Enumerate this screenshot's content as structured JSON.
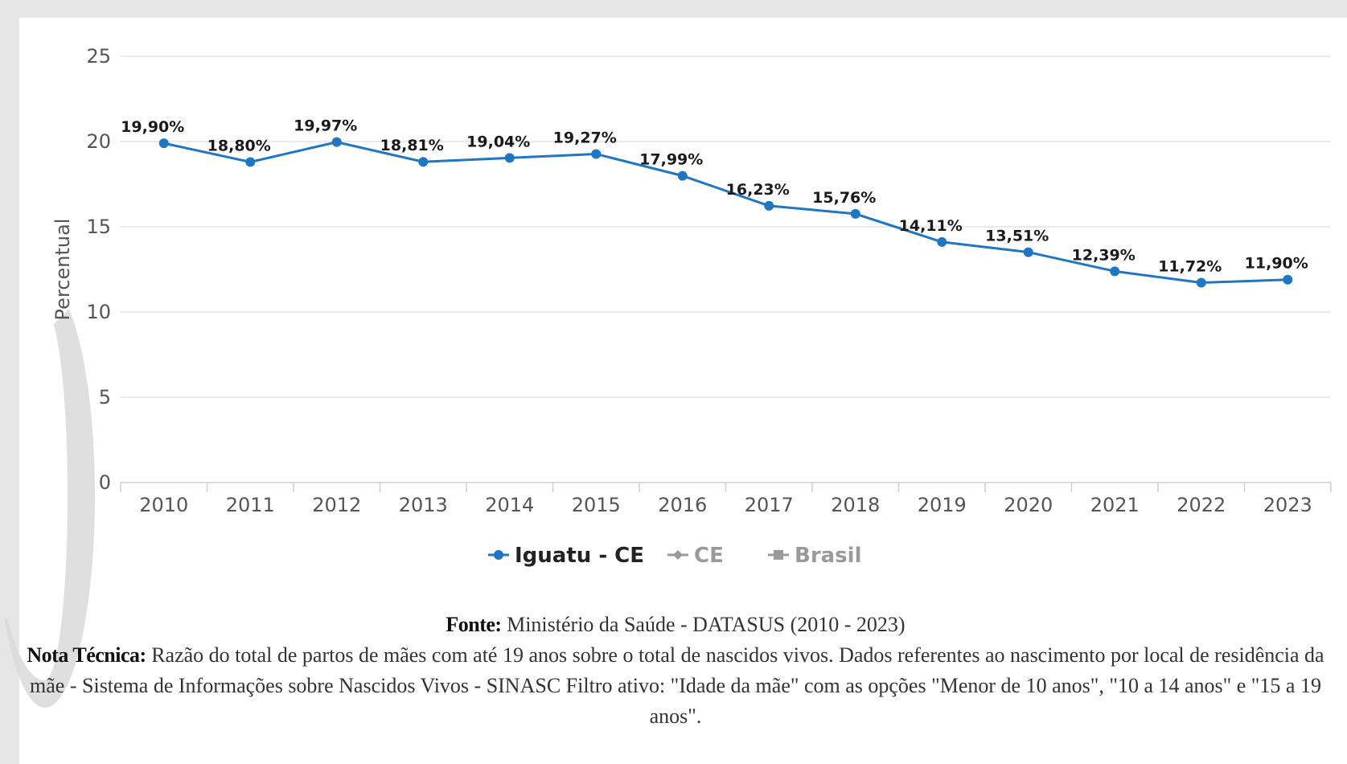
{
  "chart_data": {
    "type": "line",
    "ylabel": "Percentual",
    "ylim": [
      0,
      25
    ],
    "yticks": [
      0,
      5,
      10,
      15,
      20,
      25
    ],
    "grid": true,
    "legend_position": "bottom-center",
    "categories": [
      "2010",
      "2011",
      "2012",
      "2013",
      "2014",
      "2015",
      "2016",
      "2017",
      "2018",
      "2019",
      "2020",
      "2021",
      "2022",
      "2023"
    ],
    "series": [
      {
        "name": "Iguatu - CE",
        "color": "#1f77c4",
        "values": [
          19.9,
          18.8,
          19.97,
          18.81,
          19.04,
          19.27,
          17.99,
          16.23,
          15.76,
          14.11,
          13.51,
          12.39,
          11.72,
          11.9
        ],
        "labels": [
          "19,90%",
          "18,80%",
          "19,97%",
          "18,81%",
          "19,04%",
          "19,27%",
          "17,99%",
          "16,23%",
          "15,76%",
          "14,11%",
          "13,51%",
          "12,39%",
          "11,72%",
          "11,90%"
        ]
      }
    ],
    "legend": [
      {
        "name": "Iguatu - CE",
        "marker": "circle",
        "active": true,
        "color": "#1f77c4"
      },
      {
        "name": "CE",
        "marker": "diamond",
        "active": false,
        "color": "#9a9a9a"
      },
      {
        "name": "Brasil",
        "marker": "square",
        "active": false,
        "color": "#9a9a9a"
      }
    ]
  },
  "footer": {
    "source_label": "Fonte:",
    "source_text": "Ministério da Saúde - DATASUS (2010 - 2023)",
    "note_label": "Nota Técnica:",
    "note_text": "Razão do total de partos de mães com até 19 anos sobre o total de nascidos vivos. Dados referentes ao nascimento por local de residência da mãe - Sistema de Informações sobre Nascidos Vivos - SINASC Filtro ativo: \"Idade da mãe\" com as opções \"Menor de 10 anos\", \"10 a 14 anos\" e \"15 a 19 anos\"."
  }
}
